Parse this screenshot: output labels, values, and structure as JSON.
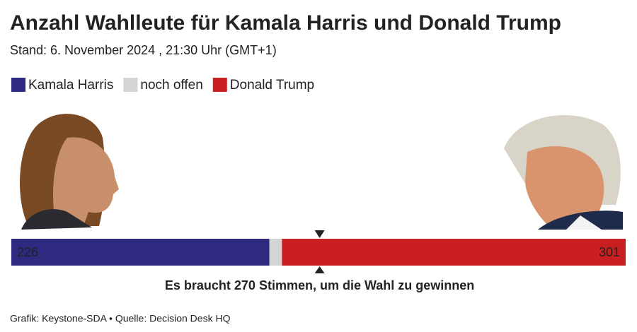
{
  "chart_data": {
    "type": "bar",
    "orientation": "horizontal",
    "stacked": true,
    "title": "Anzahl Wahlleute für Kamala Harris und Donald Trump",
    "subtitle": "Stand: 6. November 2024 , 21:30 Uhr (GMT+1)",
    "series": [
      {
        "name": "Kamala Harris",
        "color": "#2e2a80",
        "values": [
          226
        ]
      },
      {
        "name": "noch offen",
        "color": "#d4d4d4",
        "values": [
          11
        ]
      },
      {
        "name": "Donald Trump",
        "color": "#c91f20",
        "values": [
          301
        ]
      }
    ],
    "xlim": [
      0,
      538
    ],
    "threshold": {
      "value": 270,
      "label": "Es braucht 270 Stimmen, um die Wahl zu gewinnen"
    },
    "source": "Grafik: Keystone-SDA • Quelle: Decision Desk HQ"
  }
}
